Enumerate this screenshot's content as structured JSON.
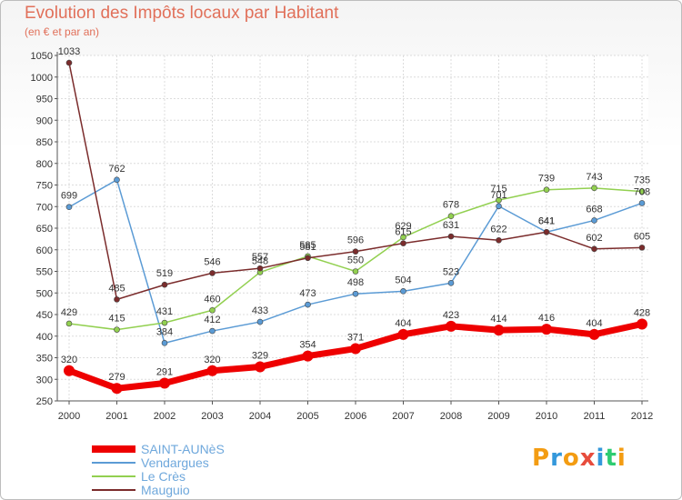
{
  "header": {
    "title": "Evolution des Impôts locaux par Habitant",
    "subtitle": "(en € et par an)"
  },
  "logo": {
    "text": "Proxiti",
    "letters": [
      "P",
      "r",
      "o",
      "x",
      "i",
      "t",
      "i"
    ],
    "colors": [
      "#f39c12",
      "#3498db",
      "#f39c12",
      "#e74c3c",
      "#3498db",
      "#2ecc71",
      "#f39c12"
    ]
  },
  "chart_data": {
    "type": "line",
    "title": "Evolution des Impôts locaux par Habitant",
    "subtitle": "(en € et par an)",
    "xlabel": "",
    "ylabel": "",
    "ylim": [
      250,
      1050
    ],
    "yticks": [
      250,
      300,
      350,
      400,
      450,
      500,
      550,
      600,
      650,
      700,
      750,
      800,
      850,
      900,
      950,
      1000,
      1050
    ],
    "categories": [
      "2000",
      "2001",
      "2002",
      "2003",
      "2004",
      "2005",
      "2006",
      "2007",
      "2008",
      "2009",
      "2010",
      "2011",
      "2012"
    ],
    "legend_position": "bottom-left",
    "series": [
      {
        "name": "SAINT-AUNèS",
        "color": "#ee0000",
        "emphasis": true,
        "values": [
          320,
          279,
          291,
          320,
          329,
          354,
          371,
          404,
          423,
          414,
          416,
          404,
          428
        ]
      },
      {
        "name": "Vendargues",
        "color": "#5b9bd5",
        "emphasis": false,
        "values": [
          699,
          762,
          384,
          412,
          433,
          473,
          498,
          504,
          523,
          701,
          641,
          668,
          708
        ]
      },
      {
        "name": "Le Crès",
        "color": "#92d050",
        "emphasis": false,
        "values": [
          429,
          415,
          431,
          460,
          548,
          585,
          550,
          629,
          678,
          715,
          739,
          743,
          735
        ]
      },
      {
        "name": "Mauguio",
        "color": "#7b2c2c",
        "emphasis": false,
        "values": [
          1033,
          485,
          519,
          546,
          557,
          581,
          596,
          615,
          631,
          622,
          641,
          602,
          605
        ]
      }
    ]
  }
}
